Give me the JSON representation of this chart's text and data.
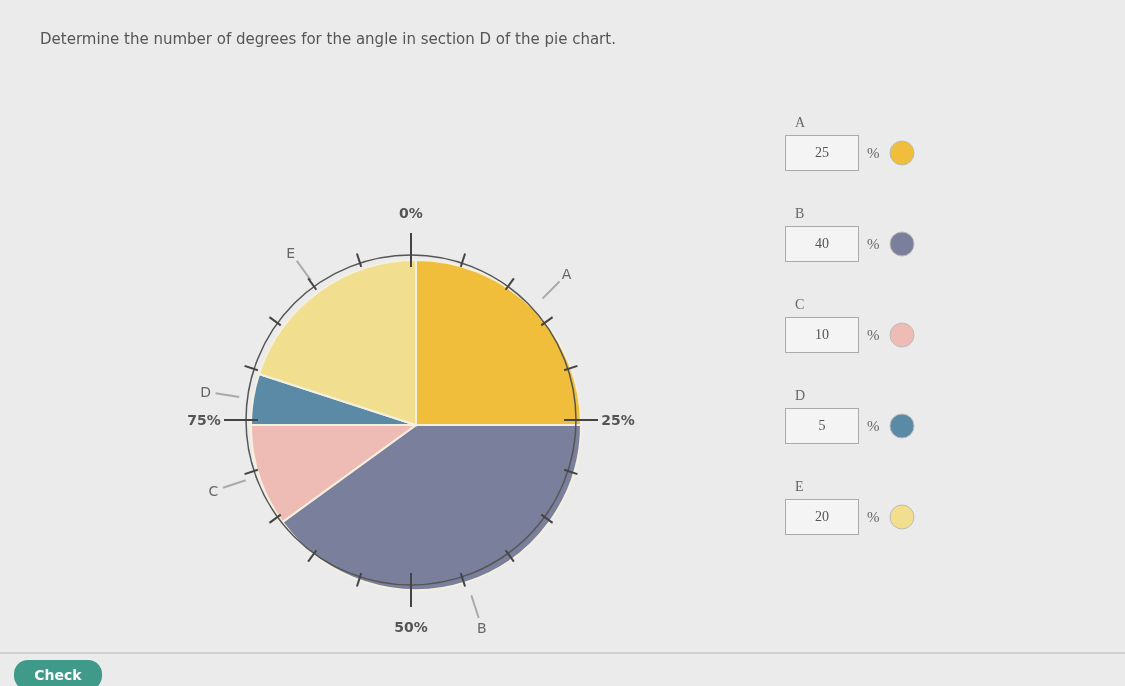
{
  "chart_data": {
    "type": "pie",
    "title": "Determine the number of degrees for the angle in section D of the pie chart.",
    "categories": [
      "A",
      "B",
      "C",
      "D",
      "E"
    ],
    "values": [
      25,
      40,
      10,
      5,
      20
    ],
    "colors": [
      "#f0be3a",
      "#7a7f9c",
      "#efbcb5",
      "#5a8aa5",
      "#f1de8e"
    ],
    "value_labels": [
      "25 %",
      "40 %",
      "10 %",
      "5 %",
      "20 %"
    ],
    "annotations": [
      "0%",
      "25%",
      "50%",
      "75%",
      "Check"
    ]
  }
}
